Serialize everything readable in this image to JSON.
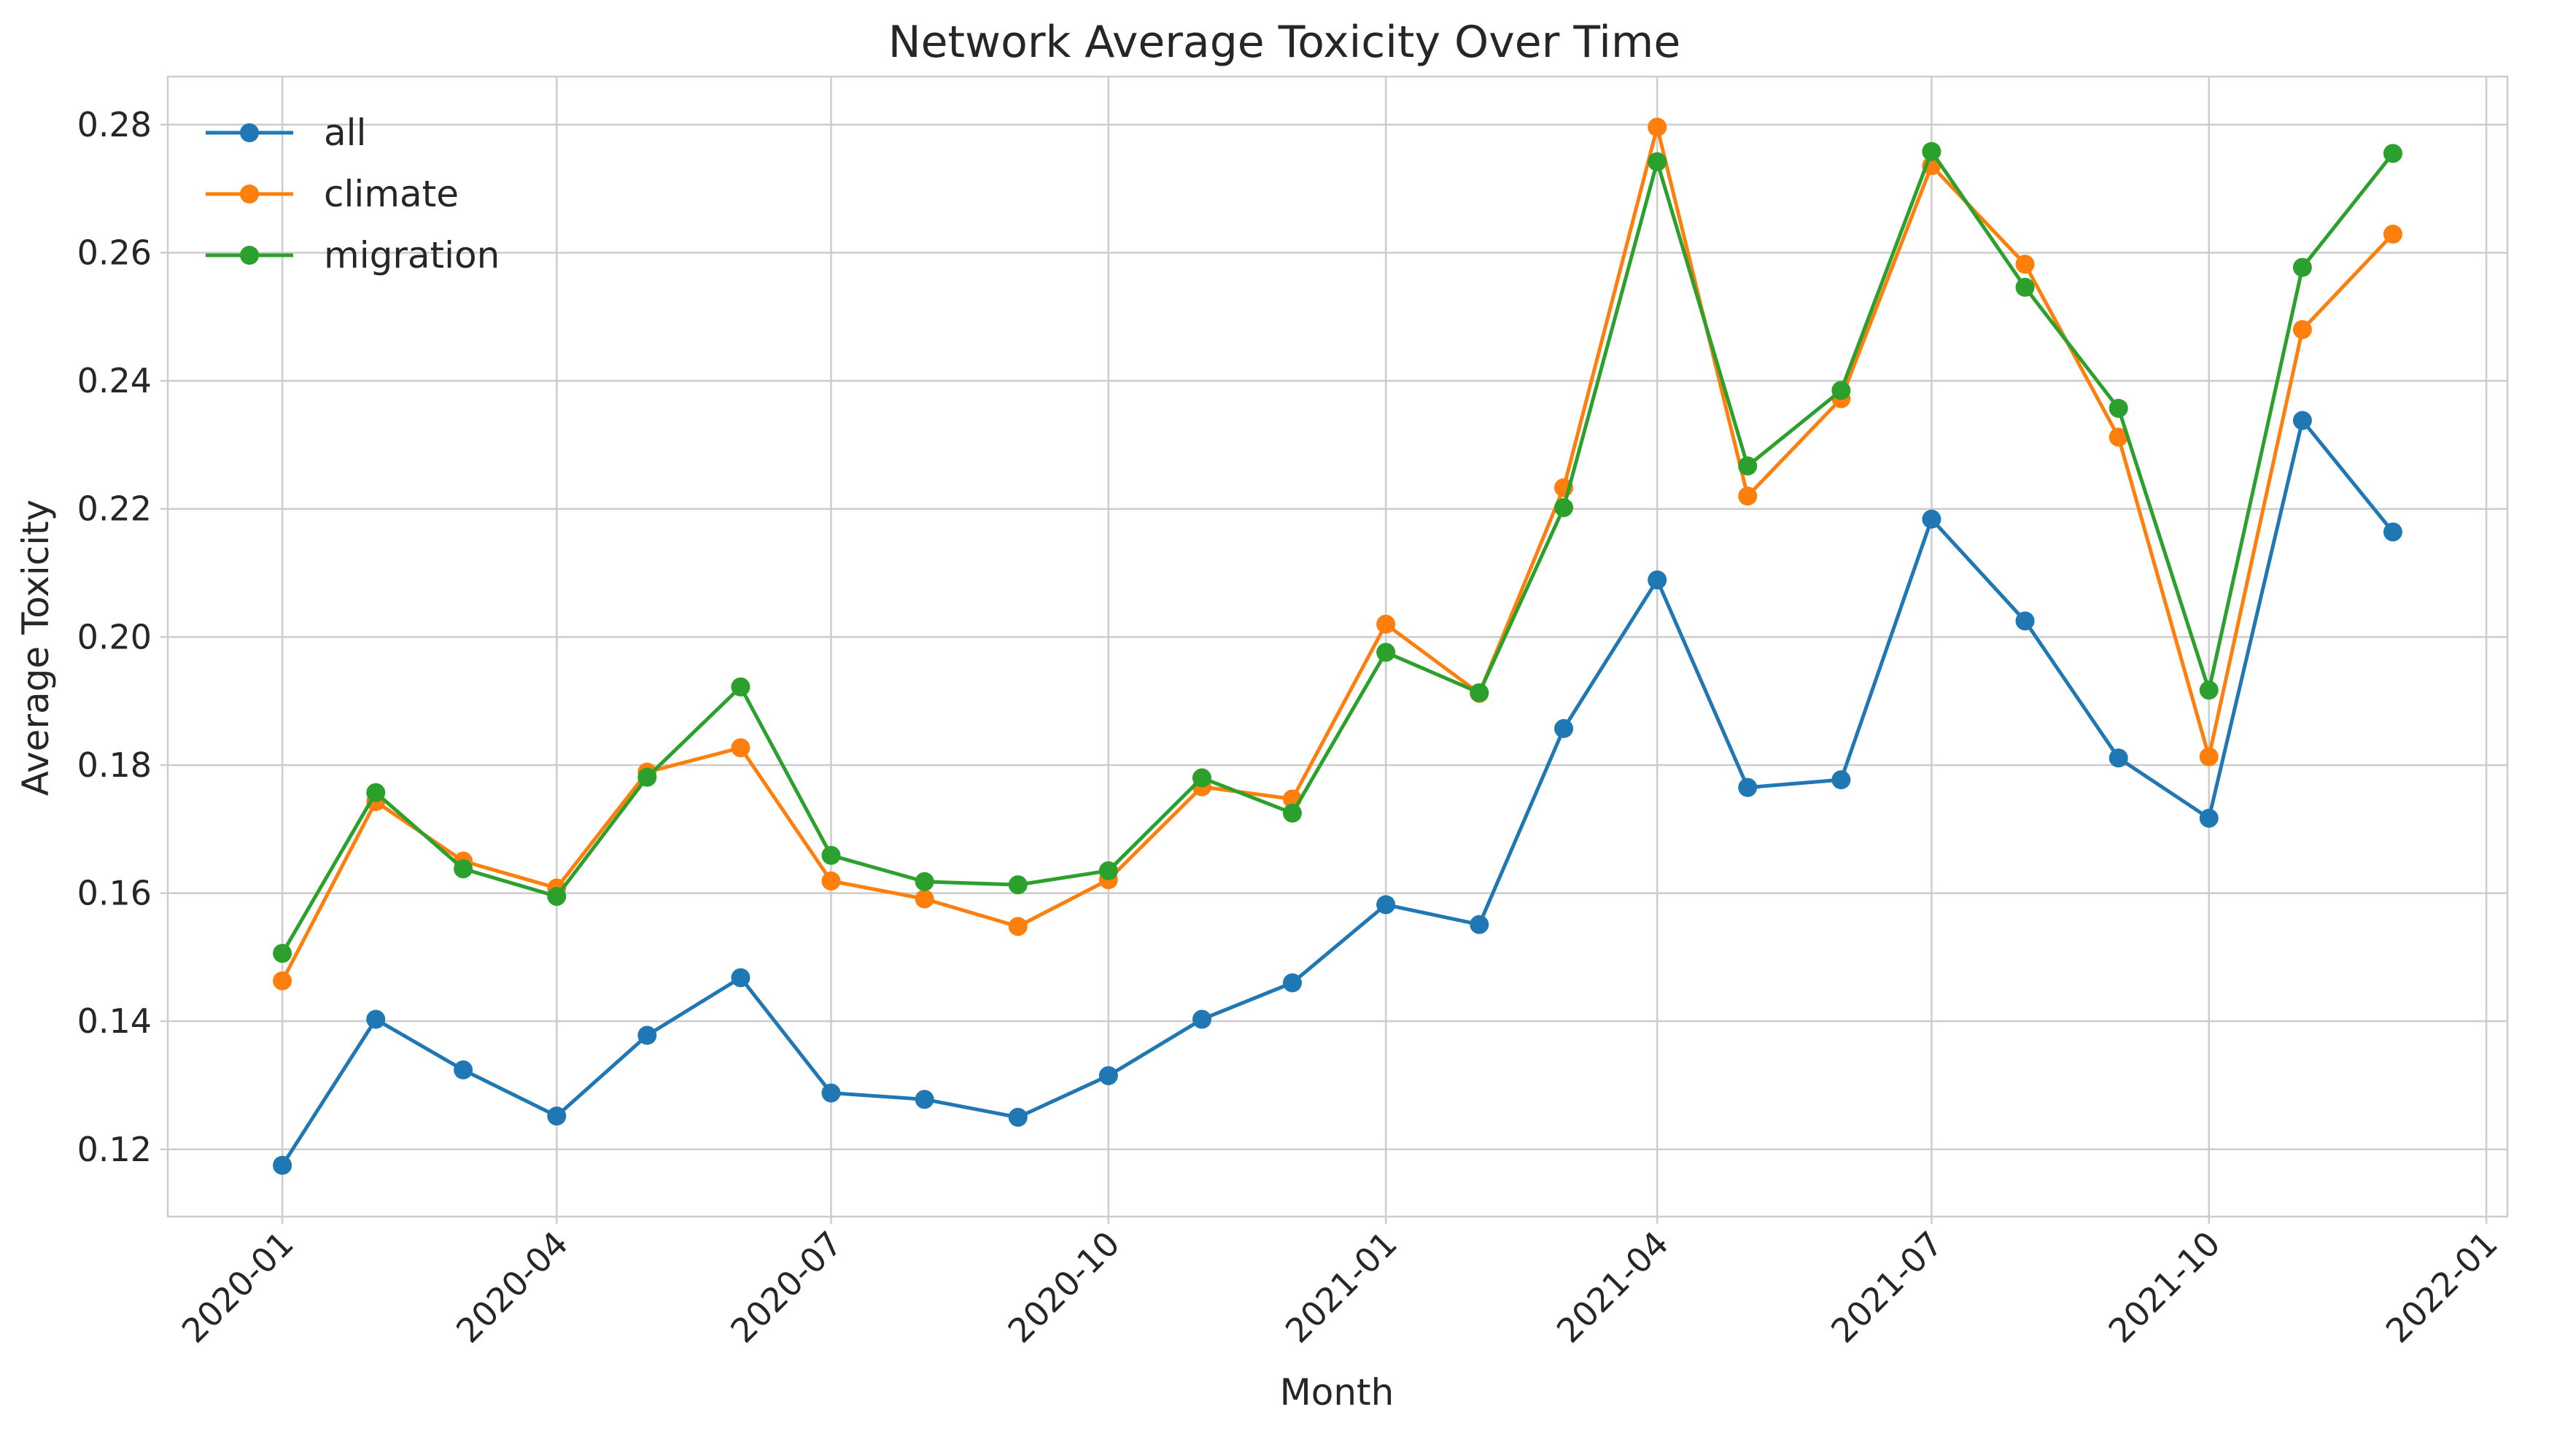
{
  "chart_data": {
    "type": "line",
    "title": "Network Average Toxicity Over Time",
    "xlabel": "Month",
    "ylabel": "Average Toxicity",
    "x": [
      "2020-01-01",
      "2020-02-01",
      "2020-03-01",
      "2020-04-01",
      "2020-05-01",
      "2020-06-01",
      "2020-07-01",
      "2020-08-01",
      "2020-09-01",
      "2020-10-01",
      "2020-11-01",
      "2020-12-01",
      "2021-01-01",
      "2021-02-01",
      "2021-03-01",
      "2021-04-01",
      "2021-05-01",
      "2021-06-01",
      "2021-07-01",
      "2021-08-01",
      "2021-09-01",
      "2021-10-01",
      "2021-11-01",
      "2021-12-01"
    ],
    "xlim": [
      "2019-11-24",
      "2022-01-08"
    ],
    "xticks": [
      "2020-01",
      "2020-04",
      "2020-07",
      "2020-10",
      "2021-01",
      "2021-04",
      "2021-07",
      "2021-10",
      "2022-01"
    ],
    "ylim": [
      0.1095,
      0.2875
    ],
    "yticks": [
      "0.12",
      "0.14",
      "0.16",
      "0.18",
      "0.20",
      "0.22",
      "0.24",
      "0.26",
      "0.28"
    ],
    "grid": true,
    "legend_position": "top-left",
    "series": [
      {
        "name": "all",
        "color": "#1f77b4",
        "values": [
          0.1175,
          0.1403,
          0.1324,
          0.1252,
          0.1378,
          0.1468,
          0.1288,
          0.1278,
          0.125,
          0.1315,
          0.1403,
          0.146,
          0.1582,
          0.1551,
          0.1857,
          0.2089,
          0.1765,
          0.1777,
          0.2184,
          0.2025,
          0.1811,
          0.1717,
          0.2338,
          0.2164
        ]
      },
      {
        "name": "climate",
        "color": "#ff7f0e",
        "values": [
          0.1463,
          0.1743,
          0.165,
          0.1608,
          0.1789,
          0.1827,
          0.1619,
          0.1591,
          0.1548,
          0.1621,
          0.1766,
          0.1747,
          0.202,
          0.1912,
          0.2233,
          0.2796,
          0.222,
          0.2372,
          0.2736,
          0.2582,
          0.2312,
          0.1813,
          0.248,
          0.2629
        ]
      },
      {
        "name": "migration",
        "color": "#2ca02c",
        "values": [
          0.1506,
          0.1757,
          0.1638,
          0.1595,
          0.1781,
          0.1922,
          0.1659,
          0.1618,
          0.1613,
          0.1635,
          0.178,
          0.1725,
          0.1976,
          0.1913,
          0.2202,
          0.2742,
          0.2267,
          0.2385,
          0.2758,
          0.2546,
          0.2357,
          0.1917,
          0.2577,
          0.2755
        ]
      }
    ]
  }
}
